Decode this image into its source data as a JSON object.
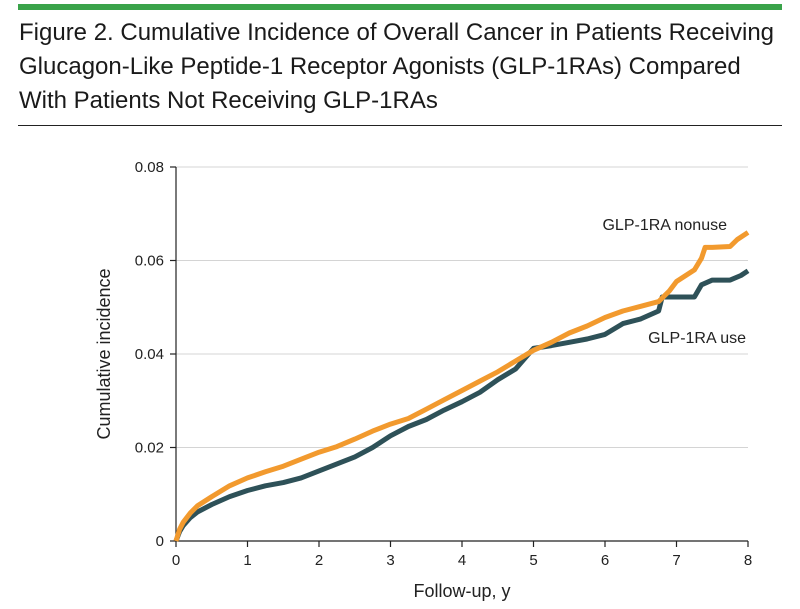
{
  "figure": {
    "title": "Figure 2. Cumulative Incidence of Overall Cancer in Patients Receiving Glucagon-Like Peptide-1 Receptor Agonists (GLP-1RAs) Compared With Patients Not Receiving GLP-1RAs"
  },
  "colors": {
    "accent_rule": "#3aa34a",
    "nonuse": "#f29a2e",
    "use": "#2e5158",
    "grid": "#d4d4d4",
    "axis": "#222222"
  },
  "chart_data": {
    "type": "line",
    "title": "Cumulative Incidence of Overall Cancer",
    "xlabel": "Follow-up, y",
    "ylabel": "Cumulative incidence",
    "xlim": [
      0,
      8
    ],
    "ylim": [
      0,
      0.08
    ],
    "x_ticks": [
      0,
      1,
      2,
      3,
      4,
      5,
      6,
      7,
      8
    ],
    "y_ticks": [
      0,
      0.02,
      0.04,
      0.06,
      0.08
    ],
    "y_tick_labels": [
      "0",
      "0.02",
      "0.04",
      "0.06",
      "0.08"
    ],
    "grid": true,
    "series": [
      {
        "name": "GLP-1RA nonuse",
        "color": "#f29a2e",
        "x": [
          0,
          0.05,
          0.1,
          0.2,
          0.3,
          0.5,
          0.75,
          1.0,
          1.25,
          1.5,
          1.75,
          2.0,
          2.25,
          2.5,
          2.75,
          3.0,
          3.25,
          3.5,
          3.75,
          4.0,
          4.25,
          4.5,
          4.75,
          5.0,
          5.25,
          5.5,
          5.75,
          6.0,
          6.25,
          6.5,
          6.75,
          6.9,
          7.0,
          7.25,
          7.35,
          7.4,
          7.5,
          7.75,
          7.85,
          8.0
        ],
        "y": [
          0,
          0.0025,
          0.004,
          0.006,
          0.0075,
          0.0095,
          0.0118,
          0.0135,
          0.0148,
          0.016,
          0.0175,
          0.019,
          0.0202,
          0.0218,
          0.0235,
          0.025,
          0.0262,
          0.0282,
          0.0302,
          0.0322,
          0.0342,
          0.0362,
          0.0385,
          0.0408,
          0.0425,
          0.0445,
          0.046,
          0.0478,
          0.0492,
          0.0502,
          0.0512,
          0.0535,
          0.0555,
          0.058,
          0.0605,
          0.0628,
          0.0628,
          0.063,
          0.0645,
          0.066
        ]
      },
      {
        "name": "GLP-1RA use",
        "color": "#2e5158",
        "x": [
          0,
          0.05,
          0.1,
          0.2,
          0.3,
          0.5,
          0.75,
          1.0,
          1.25,
          1.5,
          1.75,
          2.0,
          2.25,
          2.5,
          2.75,
          3.0,
          3.25,
          3.5,
          3.75,
          4.0,
          4.25,
          4.5,
          4.75,
          5.0,
          5.25,
          5.5,
          5.75,
          6.0,
          6.25,
          6.5,
          6.75,
          6.8,
          7.0,
          7.25,
          7.35,
          7.5,
          7.75,
          7.9,
          8.0
        ],
        "y": [
          0,
          0.002,
          0.0033,
          0.005,
          0.0062,
          0.0078,
          0.0095,
          0.0108,
          0.0118,
          0.0125,
          0.0135,
          0.015,
          0.0165,
          0.018,
          0.02,
          0.0225,
          0.0245,
          0.026,
          0.028,
          0.0298,
          0.0318,
          0.0345,
          0.0368,
          0.0412,
          0.0418,
          0.0425,
          0.0432,
          0.0442,
          0.0465,
          0.0475,
          0.0492,
          0.0522,
          0.0522,
          0.0522,
          0.0548,
          0.0558,
          0.0558,
          0.0568,
          0.0578
        ]
      }
    ],
    "annotations": [
      {
        "text": "GLP-1RA nonuse",
        "series": "GLP-1RA nonuse"
      },
      {
        "text": "GLP-1RA use",
        "series": "GLP-1RA use"
      }
    ]
  }
}
